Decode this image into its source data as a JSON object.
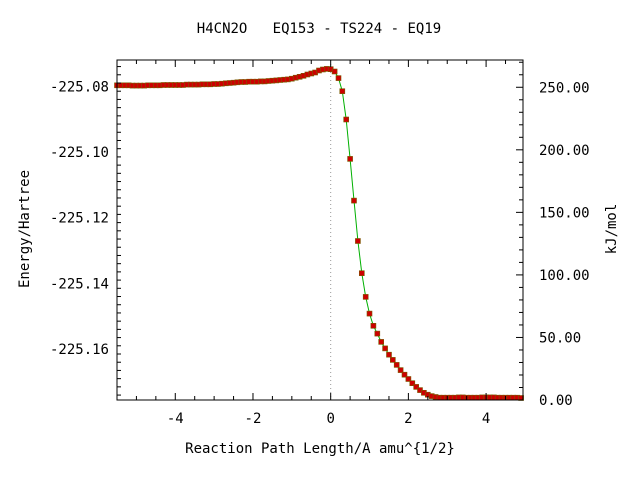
{
  "chart_data": {
    "type": "line",
    "title": "H4CN2O   EQ153 - TS224 - EQ19",
    "xlabel": "Reaction Path Length/A amu^{1/2}",
    "ylabel": "Energy/Hartree",
    "y2label": "kJ/mol",
    "xlim": [
      -5.5,
      4.95
    ],
    "ylim": [
      -225.1755,
      -225.072
    ],
    "y2lim": [
      0.0,
      271.8
    ],
    "x_ticks": [
      -4,
      -2,
      0,
      2,
      4
    ],
    "x_tick_labels": [
      "-4",
      "-2",
      "0",
      "2",
      "4"
    ],
    "y_ticks": [
      -225.08,
      -225.1,
      -225.12,
      -225.14,
      -225.16
    ],
    "y_tick_labels": [
      "-225.08",
      "-225.10",
      "-225.12",
      "-225.14",
      "-225.16"
    ],
    "y2_ticks": [
      250,
      200,
      150,
      100,
      50,
      0
    ],
    "y2_tick_labels": [
      "250.00",
      "200.00",
      "150.00",
      "100.00",
      "50.00",
      "0.00"
    ],
    "ts_x": 0,
    "grid": false,
    "line_color": "#00b000",
    "marker_color": "#cc0000",
    "marker_edge": "#7a5a00",
    "series": [
      {
        "x": [
          -5.5,
          -5.4,
          -5.3,
          -5.2,
          -5.1,
          -5.0,
          -4.9,
          -4.8,
          -4.7,
          -4.6,
          -4.5,
          -4.4,
          -4.3,
          -4.2,
          -4.1,
          -4.0,
          -3.9,
          -3.8,
          -3.7,
          -3.6,
          -3.5,
          -3.4,
          -3.3,
          -3.2,
          -3.1,
          -3.0,
          -2.9,
          -2.8,
          -2.7,
          -2.6,
          -2.5,
          -2.4,
          -2.3,
          -2.2,
          -2.1,
          -2.0,
          -1.9,
          -1.8,
          -1.7,
          -1.6,
          -1.5,
          -1.4,
          -1.3,
          -1.2,
          -1.1,
          -1.0,
          -0.9,
          -0.8,
          -0.7,
          -0.6,
          -0.5,
          -0.4,
          -0.3,
          -0.2,
          -0.1,
          0.0,
          0.1,
          0.2,
          0.3,
          0.4,
          0.5,
          0.6,
          0.7,
          0.8,
          0.9,
          1.0,
          1.1,
          1.2,
          1.3,
          1.4,
          1.5,
          1.6,
          1.7,
          1.8,
          1.9,
          2.0,
          2.1,
          2.2,
          2.3,
          2.4,
          2.5,
          2.6,
          2.7,
          2.8,
          2.9,
          3.0,
          3.1,
          3.2,
          3.3,
          3.4,
          3.5,
          3.6,
          3.7,
          3.8,
          3.9,
          4.0,
          4.1,
          4.2,
          4.3,
          4.4,
          4.5,
          4.6,
          4.7,
          4.8,
          4.9
        ],
        "y": [
          -225.0797,
          -225.0797,
          -225.0797,
          -225.0797,
          -225.0798,
          -225.0798,
          -225.0798,
          -225.0798,
          -225.0797,
          -225.0797,
          -225.0797,
          -225.0797,
          -225.0796,
          -225.0796,
          -225.0796,
          -225.0796,
          -225.0796,
          -225.0796,
          -225.0795,
          -225.0795,
          -225.0795,
          -225.0795,
          -225.0794,
          -225.0794,
          -225.0794,
          -225.0793,
          -225.0793,
          -225.0792,
          -225.0791,
          -225.079,
          -225.0789,
          -225.0788,
          -225.0787,
          -225.0787,
          -225.0786,
          -225.0786,
          -225.0786,
          -225.0785,
          -225.0785,
          -225.0784,
          -225.0783,
          -225.0782,
          -225.0781,
          -225.078,
          -225.0779,
          -225.0777,
          -225.0774,
          -225.0771,
          -225.0768,
          -225.0764,
          -225.0761,
          -225.0758,
          -225.0752,
          -225.0749,
          -225.0747,
          -225.0748,
          -225.0755,
          -225.0775,
          -225.0815,
          -225.0901,
          -225.1021,
          -225.1148,
          -225.1271,
          -225.1369,
          -225.1441,
          -225.1492,
          -225.1529,
          -225.1553,
          -225.1578,
          -225.1598,
          -225.1617,
          -225.1633,
          -225.1648,
          -225.1664,
          -225.1678,
          -225.1691,
          -225.1704,
          -225.1715,
          -225.1725,
          -225.1733,
          -225.1739,
          -225.1743,
          -225.1746,
          -225.1748,
          -225.1748,
          -225.1748,
          -225.1748,
          -225.1748,
          -225.1747,
          -225.1747,
          -225.1748,
          -225.1748,
          -225.1748,
          -225.1748,
          -225.1747,
          -225.1747,
          -225.1747,
          -225.1747,
          -225.1748,
          -225.1748,
          -225.1748,
          -225.1748,
          -225.1748,
          -225.1748,
          -225.1749
        ]
      }
    ]
  }
}
